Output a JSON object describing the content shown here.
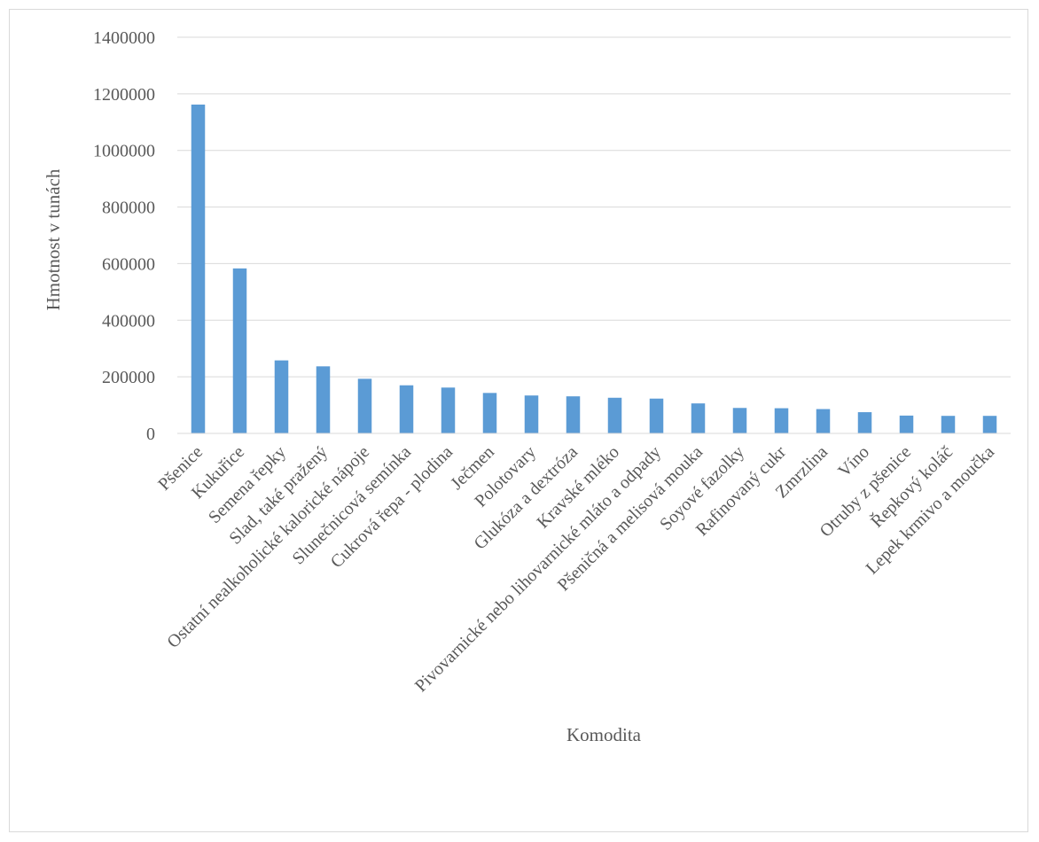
{
  "chart_data": {
    "type": "bar",
    "title": "",
    "xlabel": "Komodita",
    "ylabel": "Hmotnost v tunách",
    "ylim": [
      0,
      1400000
    ],
    "yticks": [
      0,
      200000,
      400000,
      600000,
      800000,
      1000000,
      1200000,
      1400000
    ],
    "grid": true,
    "legend": "none",
    "bar_color": "#5b9bd5",
    "categories": [
      "Pšenice",
      "Kukuřice",
      "Semena řepky",
      "Slad, také pražený",
      "Ostatní nealkoholické kalorické nápoje",
      "Slunečnicová semínka",
      "Cukrová řepa - plodina",
      "Ječmen",
      "Polotovary",
      "Glukóza a dextróza",
      "Kravské mléko",
      "Pivovarnické nebo lihovarnické mláto a odpady",
      "Pšeničná a melisová mouka",
      "Soyové fazolky",
      "Rafinovaný cukr",
      "Zmrzlina",
      "Víno",
      "Otruby z pšenice",
      "Řepkový koláč",
      "Lepek krmivo a moučka"
    ],
    "values": [
      1162000,
      583000,
      258000,
      237000,
      193000,
      170000,
      162000,
      143000,
      134000,
      131000,
      126000,
      123000,
      106000,
      90000,
      89000,
      86000,
      75000,
      63000,
      62000,
      62000
    ]
  }
}
